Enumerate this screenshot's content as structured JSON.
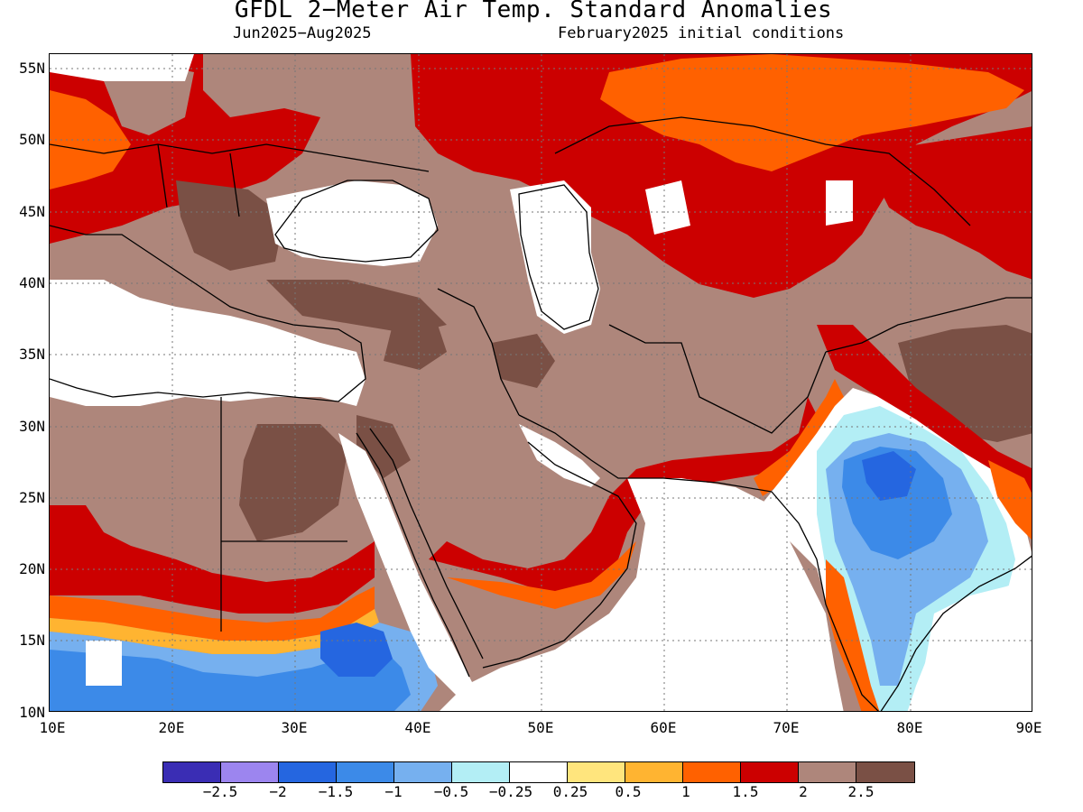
{
  "header": {
    "title": "GFDL 2−Meter Air Temp. Standard Anomalies",
    "period": "Jun2025−Aug2025",
    "init": "February2025 initial conditions"
  },
  "map": {
    "lat_labels": [
      "55N",
      "50N",
      "45N",
      "40N",
      "35N",
      "30N",
      "25N",
      "20N",
      "15N",
      "10N"
    ],
    "lon_labels": [
      "10E",
      "20E",
      "30E",
      "40E",
      "50E",
      "60E",
      "70E",
      "80E",
      "90E"
    ],
    "lat_range": [
      10,
      56
    ],
    "lon_range": [
      10,
      90
    ],
    "gridlines": "dotted"
  },
  "legend": {
    "colors": [
      "#3a2db4",
      "#9c85ef",
      "#2566e0",
      "#3c8ae8",
      "#76b0ef",
      "#b3eef5",
      "#ffffff",
      "#ffe57d",
      "#ffb431",
      "#ff6100",
      "#cc0000",
      "#ae867b",
      "#7a5045"
    ],
    "labels": [
      "−2.5",
      "−2",
      "−1.5",
      "−1",
      "−0.5",
      "−0.25",
      "0.25",
      "0.5",
      "1",
      "1.5",
      "2",
      "2.5"
    ]
  },
  "colors": {
    "brown_light": "#ae867b",
    "brown_dark": "#7a5045",
    "red": "#cc0000",
    "orange": "#ff6100",
    "orange_light": "#ffb431",
    "yellow": "#ffe57d",
    "cyan": "#b3eef5",
    "blue_light": "#76b0ef",
    "blue": "#3c8ae8",
    "blue_mid": "#2566e0"
  }
}
